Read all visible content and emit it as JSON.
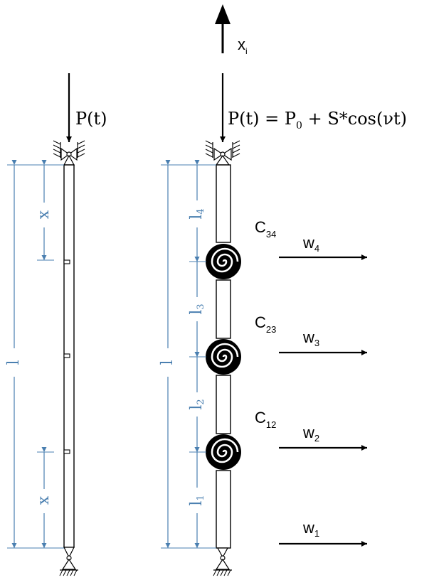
{
  "colors": {
    "ink": "#000000",
    "dimension": "#4a7fb0",
    "background": "#ffffff"
  },
  "axis": {
    "label": "x",
    "subscript": "i"
  },
  "left_column": {
    "load_label": "P(t)",
    "length_label": "l",
    "top_offset_label": "x",
    "bottom_offset_label": "x"
  },
  "right_column": {
    "load_label_main": "P(t) = P",
    "load_label_sub": "0",
    "load_label_rest": " + S*cos(νt)",
    "length_label": "l",
    "segments": [
      {
        "label": "l",
        "sub": "4"
      },
      {
        "label": "l",
        "sub": "3"
      },
      {
        "label": "l",
        "sub": "2"
      },
      {
        "label": "l",
        "sub": "1"
      }
    ],
    "springs": [
      {
        "label": "C",
        "sub": "34"
      },
      {
        "label": "C",
        "sub": "23"
      },
      {
        "label": "C",
        "sub": "12"
      }
    ],
    "deflections": [
      {
        "label": "w",
        "sub": "4"
      },
      {
        "label": "w",
        "sub": "3"
      },
      {
        "label": "w",
        "sub": "2"
      },
      {
        "label": "w",
        "sub": "1"
      }
    ]
  }
}
